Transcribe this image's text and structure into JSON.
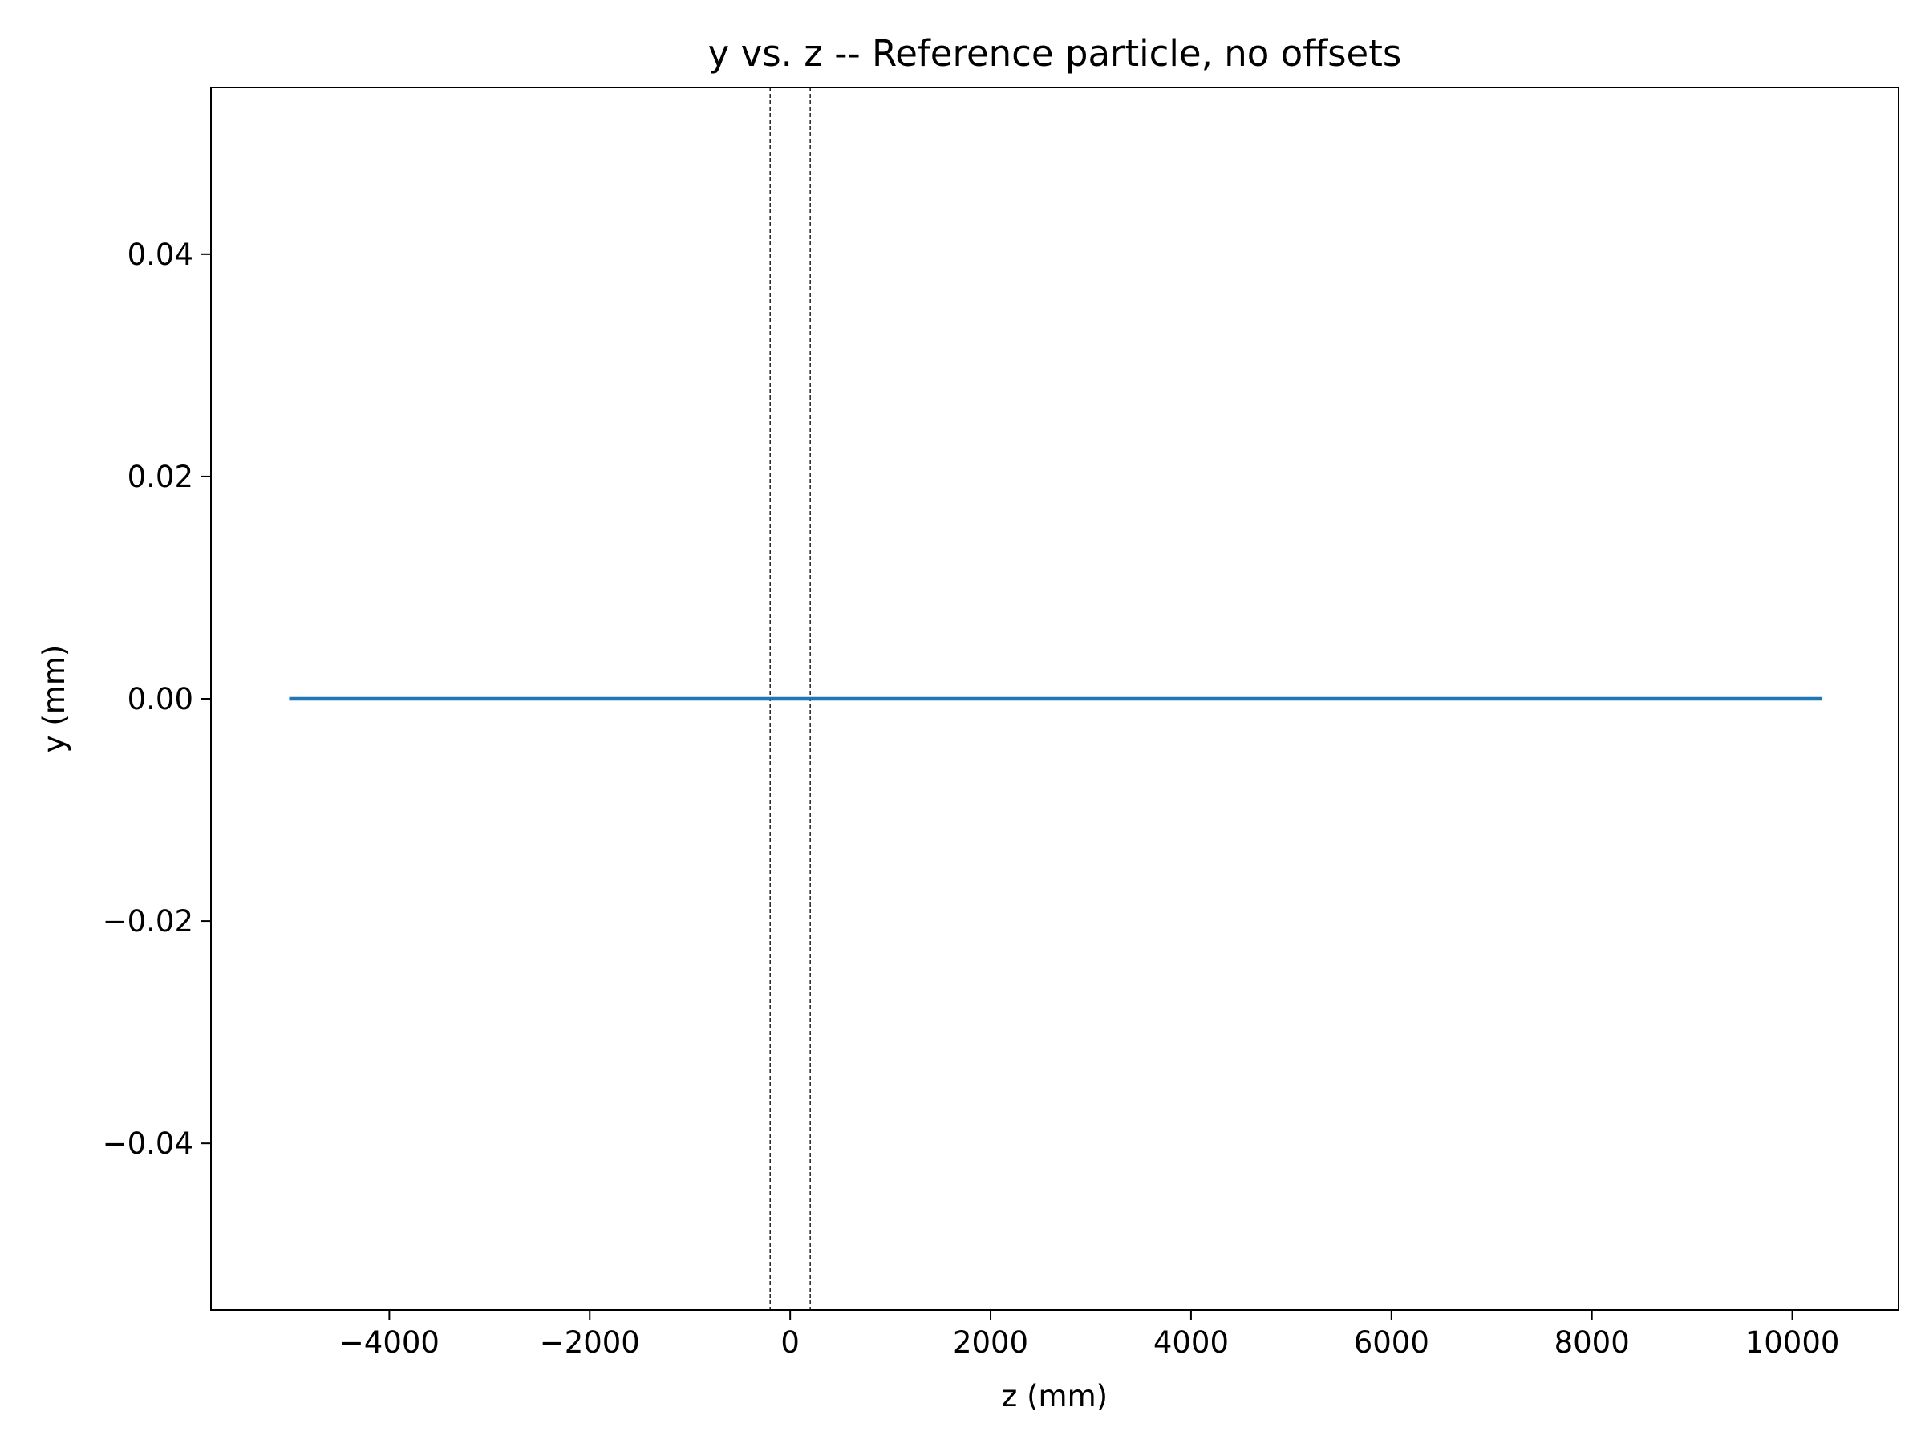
{
  "chart_data": {
    "type": "line",
    "title": "y vs. z -- Reference particle, no offsets",
    "xlabel": "z (mm)",
    "ylabel": "y (mm)",
    "xlim": [
      -5780,
      11060
    ],
    "ylim": [
      -0.055,
      0.055
    ],
    "x_ticks": [
      {
        "value": -4000,
        "label": "−4000"
      },
      {
        "value": -2000,
        "label": "−2000"
      },
      {
        "value": 0,
        "label": "0"
      },
      {
        "value": 2000,
        "label": "2000"
      },
      {
        "value": 4000,
        "label": "4000"
      },
      {
        "value": 6000,
        "label": "6000"
      },
      {
        "value": 8000,
        "label": "8000"
      },
      {
        "value": 10000,
        "label": "10000"
      }
    ],
    "y_ticks": [
      {
        "value": 0.04,
        "label": "0.04"
      },
      {
        "value": 0.02,
        "label": "0.02"
      },
      {
        "value": 0.0,
        "label": "0.00"
      },
      {
        "value": -0.02,
        "label": "−0.02"
      },
      {
        "value": -0.04,
        "label": "−0.04"
      }
    ],
    "series": [
      {
        "color": "#1f77b4",
        "x": [
          -5000,
          10300
        ],
        "y": [
          0.0,
          0.0
        ]
      }
    ],
    "vertical_lines": [
      {
        "x": -200,
        "style": "dashed",
        "color": "#000000"
      },
      {
        "x": 200,
        "style": "dashed",
        "color": "#000000"
      }
    ],
    "grid": false,
    "legend": "none"
  }
}
